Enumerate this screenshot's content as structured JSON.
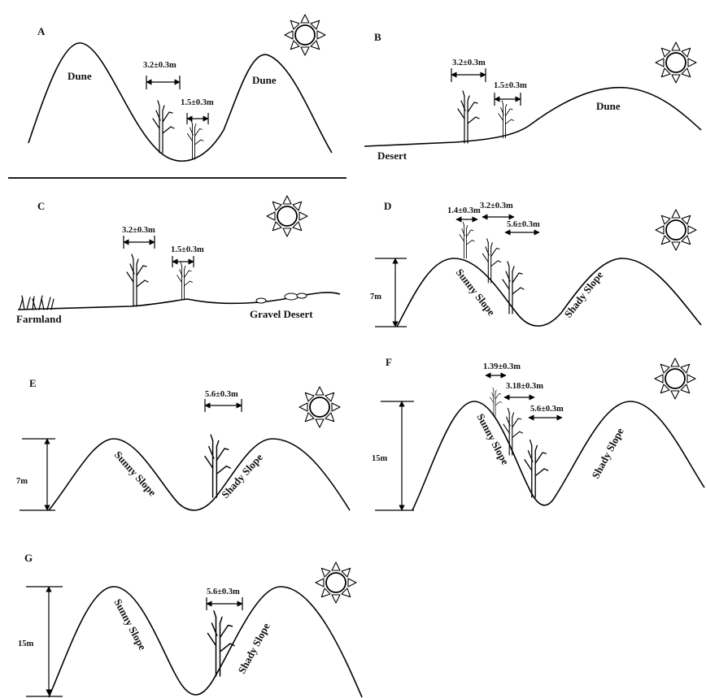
{
  "panels": {
    "a": {
      "letter": "A",
      "left_label": "Dune",
      "right_label": "Dune",
      "m1": "3.2±0.3m",
      "m2": "1.5±0.3m"
    },
    "b": {
      "letter": "B",
      "dune_label": "Dune",
      "desert_label": "Desert",
      "m1": "3.2±0.3m",
      "m2": "1.5±0.3m"
    },
    "c": {
      "letter": "C",
      "farmland_label": "Farmland",
      "gravel_label": "Gravel Desert",
      "m1": "3.2±0.3m",
      "m2": "1.5±0.3m"
    },
    "d": {
      "letter": "D",
      "height": "7m",
      "sunny": "Sunny Slope",
      "shady": "Shady Slope",
      "m1": "1.4±0.3m",
      "m2": "3.2±0.3m",
      "m3": "5.6±0.3m"
    },
    "e": {
      "letter": "E",
      "height": "7m",
      "sunny": "Sunny Slope",
      "shady": "Shady Slope",
      "m1": "5.6±0.3m"
    },
    "f": {
      "letter": "F",
      "height": "15m",
      "sunny": "Sunny Slope",
      "shady": "Shady Slope",
      "m1": "1.39±0.3m",
      "m2": "3.18±0.3m",
      "m3": "5.6±0.3m"
    },
    "g": {
      "letter": "G",
      "height": "15m",
      "sunny": "Sunny Slope",
      "shady": "Shady Slope",
      "m1": "5.6±0.3m"
    }
  }
}
